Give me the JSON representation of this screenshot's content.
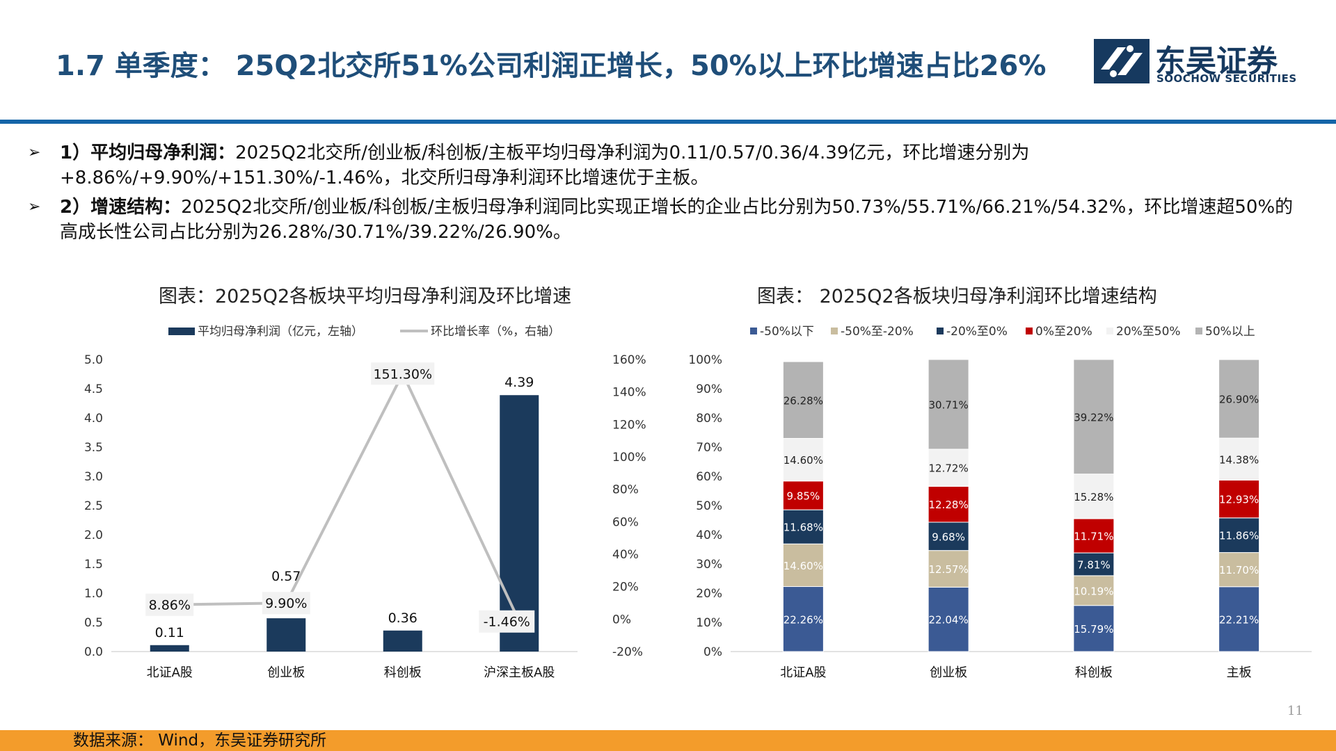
{
  "header": {
    "title": "1.7 单季度： 25Q2北交所51%公司利润正增长，50%以上环比增速占比26%",
    "logo_cn": "东吴证券",
    "logo_en": "SOOCHOW SECURITIES",
    "brand_color": "#1f4e79",
    "logo_icon": "soochow-logo-icon"
  },
  "bullets": [
    {
      "head": "1）平均归母净利润：",
      "body": "2025Q2北交所/创业板/科创板/主板平均归母净利润为0.11/0.57/0.36/4.39亿元，环比增速分别为+8.86%/+9.90%/+151.30%/-1.46%，北交所归母净利润环比增速优于主板。"
    },
    {
      "head": "2）增速结构：",
      "body": "2025Q2北交所/创业板/科创板/主板归母净利润同比实现正增长的企业占比分别为50.73%/55.71%/66.21%/54.32%，环比增速超50%的高成长性公司占比分别为26.28%/30.71%/39.22%/26.90%。"
    }
  ],
  "charts": {
    "left_title": "图表：2025Q2各板块平均归母净利润及环比增速",
    "right_title": "图表： 2025Q2各板块归母净利润环比增速结构"
  },
  "chart_data": [
    {
      "type": "bar",
      "categories": [
        "北证A股",
        "创业板",
        "科创板",
        "沪深主板A股"
      ],
      "series": [
        {
          "name": "平均归母净利润（亿元，左轴）",
          "kind": "bar",
          "axis": "left",
          "values": [
            0.11,
            0.57,
            0.36,
            4.39
          ],
          "labels": [
            "0.11",
            "0.57",
            "0.36",
            "4.39"
          ],
          "color": "#1b3a5c"
        },
        {
          "name": "环比增长率（%，右轴）",
          "kind": "line",
          "axis": "right",
          "values": [
            8.86,
            9.9,
            151.3,
            -1.46
          ],
          "labels": [
            "8.86%",
            "9.90%",
            "151.30%",
            "-1.46%"
          ],
          "color": "#bfbfbf"
        }
      ],
      "ylim": [
        0,
        5.0
      ],
      "y_ticks": [
        "0.0",
        "0.5",
        "1.0",
        "1.5",
        "2.0",
        "2.5",
        "3.0",
        "3.5",
        "4.0",
        "4.5",
        "5.0"
      ],
      "y2lim": [
        -20,
        160
      ],
      "y2_ticks": [
        "-20%",
        "0%",
        "20%",
        "40%",
        "60%",
        "80%",
        "100%",
        "120%",
        "140%",
        "160%"
      ],
      "legend": "top",
      "grid": false
    },
    {
      "type": "bar",
      "stacked": true,
      "categories": [
        "北证A股",
        "创业板",
        "科创板",
        "主板"
      ],
      "series": [
        {
          "name": "-50%以下",
          "values": [
            22.26,
            22.04,
            15.79,
            22.21
          ],
          "labels": [
            "22.26%",
            "22.04%",
            "15.79%",
            "22.21%"
          ],
          "color": "#3b5a94",
          "label_color": "#ffffff"
        },
        {
          "name": "-50%至-20%",
          "values": [
            14.6,
            12.57,
            10.19,
            11.7
          ],
          "labels": [
            "14.60%",
            "12.57%",
            "10.19%",
            "11.70%"
          ],
          "color": "#c9bd9f",
          "label_color": "#ffffff"
        },
        {
          "name": "-20%至0%",
          "values": [
            11.68,
            9.68,
            7.81,
            11.86
          ],
          "labels": [
            "11.68%",
            "9.68%",
            "7.81%",
            "11.86%"
          ],
          "color": "#1b3a5c",
          "label_color": "#ffffff"
        },
        {
          "name": "0%至20%",
          "values": [
            9.85,
            12.28,
            11.71,
            12.93
          ],
          "labels": [
            "9.85%",
            "12.28%",
            "11.71%",
            "12.93%"
          ],
          "color": "#c00000",
          "label_color": "#ffffff"
        },
        {
          "name": "20%至50%",
          "values": [
            14.6,
            12.72,
            15.28,
            14.38
          ],
          "labels": [
            "14.60%",
            "12.72%",
            "15.28%",
            "14.38%"
          ],
          "color": "#f2f2f2",
          "label_color": "#222222"
        },
        {
          "name": "50%以上",
          "values": [
            26.28,
            30.71,
            39.22,
            26.9
          ],
          "labels": [
            "26.28%",
            "30.71%",
            "39.22%",
            "26.90%"
          ],
          "color": "#b3b3b3",
          "label_color": "#222222"
        }
      ],
      "ylim": [
        0,
        100
      ],
      "y_ticks": [
        "0%",
        "10%",
        "20%",
        "30%",
        "40%",
        "50%",
        "60%",
        "70%",
        "80%",
        "90%",
        "100%"
      ],
      "legend": "top",
      "grid": false
    }
  ],
  "page_number": "11",
  "footer": {
    "source": "数据来源： Wind，东吴证券研究所",
    "color": "#f39c2b"
  }
}
